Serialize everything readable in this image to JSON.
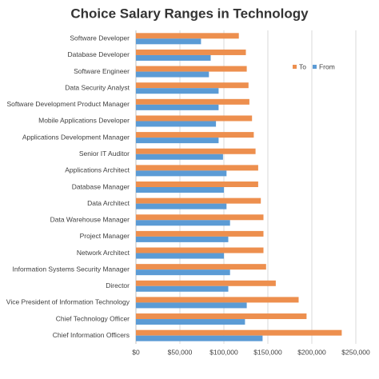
{
  "chart_data": {
    "type": "hbar",
    "title": "Choice Salary Ranges in Technology",
    "categories": [
      "Software Developer",
      "Database Developer",
      "Software Engineer",
      "Data Security Analyst",
      "Software Development Product Manager",
      "Mobile Applications Developer",
      "Applications Development Manager",
      "Senior IT Auditor",
      "Applications Architect",
      "Database Manager",
      "Data Architect",
      "Data Warehouse Manager",
      "Project Manager",
      "Network Architect",
      "Information Systems Security Manager",
      "Director",
      "Vice President of Information Technology",
      "Chief Technology Officer",
      "Chief Information Officers"
    ],
    "series": [
      {
        "name": "To",
        "color": "#ed8f4e",
        "values": [
          117000,
          125000,
          126000,
          128000,
          129000,
          132000,
          134000,
          136000,
          139000,
          139000,
          142000,
          145000,
          145000,
          145000,
          148000,
          159000,
          185000,
          194000,
          234000
        ]
      },
      {
        "name": "From",
        "color": "#5b9bd5",
        "values": [
          74000,
          85000,
          83000,
          94000,
          94000,
          91000,
          94000,
          99000,
          103000,
          100000,
          103000,
          107000,
          105000,
          100000,
          107000,
          105000,
          126000,
          124000,
          144000
        ]
      }
    ],
    "xlim": [
      0,
      250000
    ],
    "xticks": [
      {
        "value": 0,
        "label": "$0"
      },
      {
        "value": 50000,
        "label": "$50,000"
      },
      {
        "value": 100000,
        "label": "$100,000"
      },
      {
        "value": 150000,
        "label": "$150,000"
      },
      {
        "value": 200000,
        "label": "$200,000"
      },
      {
        "value": 250000,
        "label": "$250,000"
      }
    ],
    "grid": true,
    "legend": "top-right"
  }
}
